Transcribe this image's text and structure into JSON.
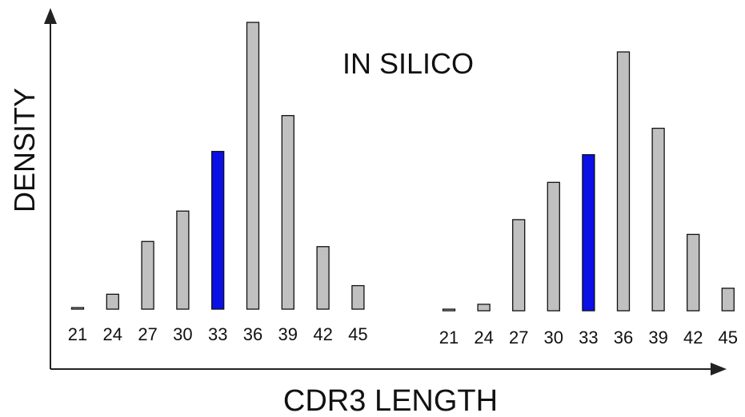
{
  "chart_data": [
    {
      "type": "bar",
      "title": "",
      "xlabel": "CDR3 LENGTH",
      "ylabel": "DENSITY",
      "categories": [
        "21",
        "24",
        "27",
        "30",
        "33",
        "36",
        "39",
        "42",
        "45"
      ],
      "values": [
        0.5,
        5.2,
        23.6,
        34.2,
        55.0,
        100.0,
        67.5,
        21.8,
        8.2
      ],
      "highlight_category": "33",
      "colors": {
        "bar": "#c0c0c0",
        "highlight": "#0a10e6",
        "stroke": "#111111"
      }
    },
    {
      "type": "bar",
      "title": "IN SILICO",
      "xlabel": "CDR3 LENGTH",
      "ylabel": "DENSITY",
      "categories": [
        "21",
        "24",
        "27",
        "30",
        "33",
        "36",
        "39",
        "42",
        "45"
      ],
      "values": [
        0.3,
        2.5,
        35.2,
        49.6,
        60.3,
        100.0,
        70.5,
        29.5,
        8.7
      ],
      "highlight_category": "33",
      "colors": {
        "bar": "#c0c0c0",
        "highlight": "#0a10e6",
        "stroke": "#111111"
      }
    }
  ],
  "labels": {
    "in_silico": "IN SILICO",
    "x_axis": "CDR3 LENGTH",
    "y_axis": "DENSITY"
  }
}
